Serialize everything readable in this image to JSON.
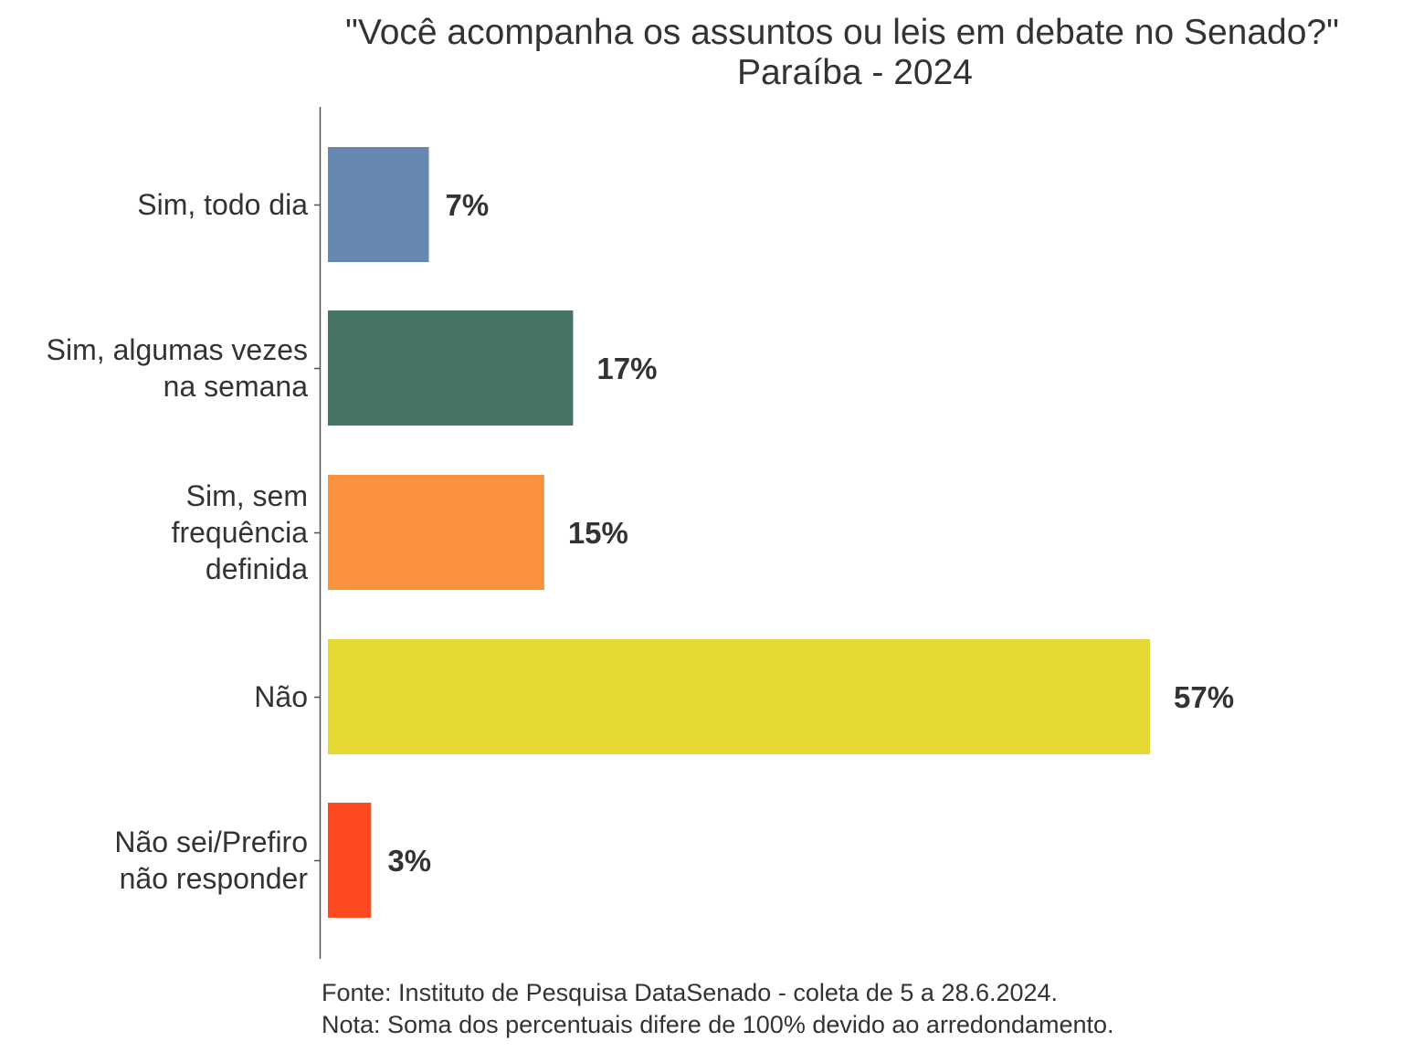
{
  "chart_data": {
    "type": "bar",
    "orientation": "horizontal",
    "title": "\"Você acompanha os assuntos ou leis em debate no Senado?\"",
    "subtitle": "Paraíba - 2024",
    "categories": [
      [
        "Sim, todo dia"
      ],
      [
        "Sim, algumas vezes",
        "na semana"
      ],
      [
        "Sim, sem",
        "frequência",
        "definida"
      ],
      [
        "Não"
      ],
      [
        "Não sei/Prefiro",
        "não responder"
      ]
    ],
    "values": [
      7,
      17,
      15,
      57,
      3
    ],
    "value_labels": [
      "7%",
      "17%",
      "15%",
      "57%",
      "3%"
    ],
    "colors": [
      "#6688b0",
      "#467462",
      "#fa913c",
      "#e4d834",
      "#fe4a22"
    ],
    "xlim": [
      0,
      60
    ],
    "grid": false,
    "legend": "none"
  },
  "caption": {
    "source": "Fonte: Instituto de Pesquisa DataSenado - coleta de 5 a 28.6.2024.",
    "note": "Nota: Soma dos percentuais difere de 100% devido ao arredondamento."
  }
}
